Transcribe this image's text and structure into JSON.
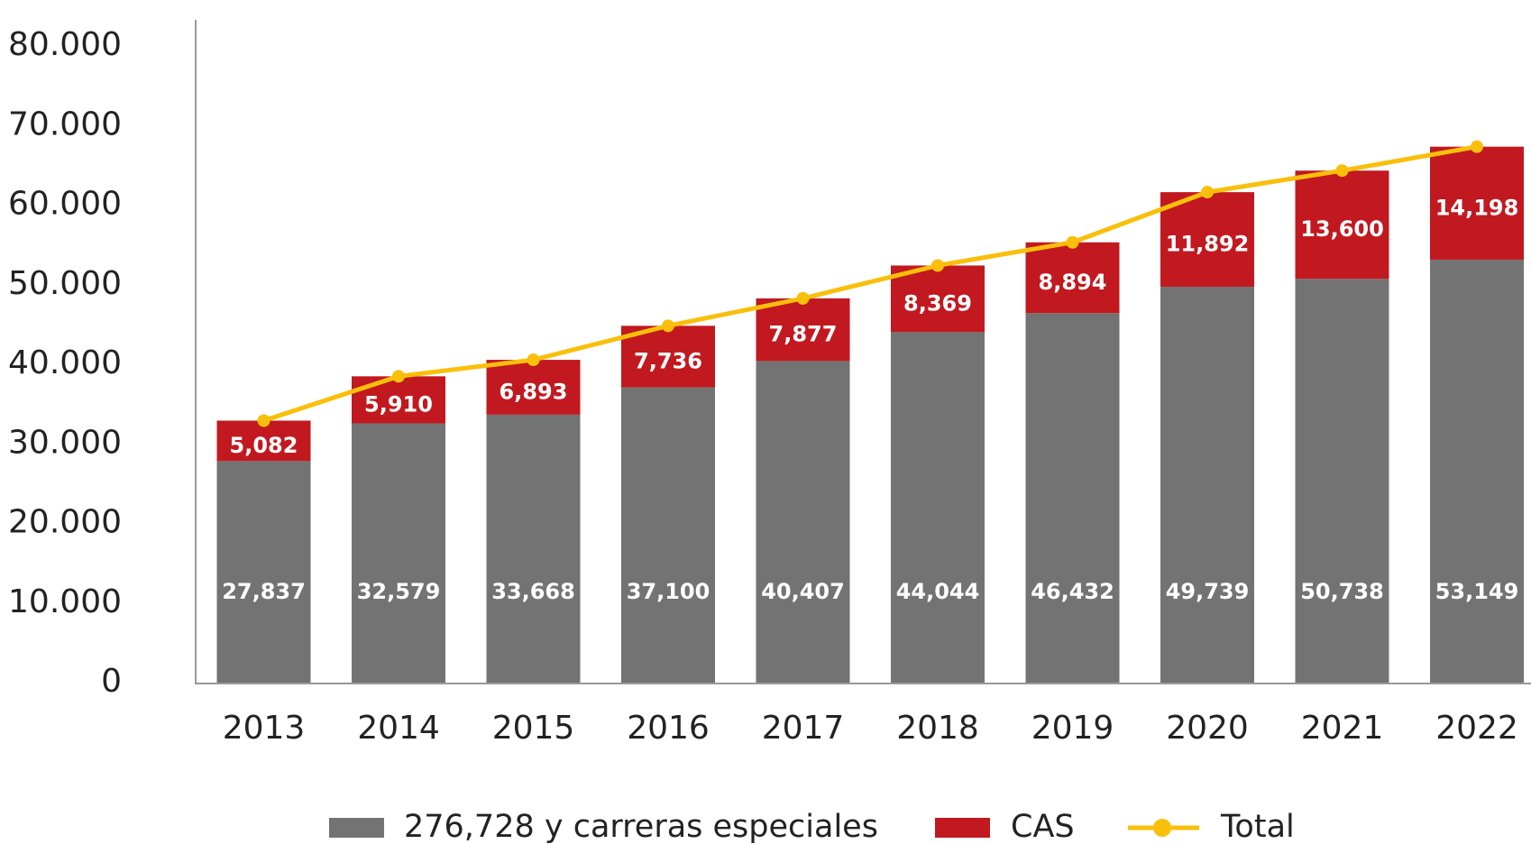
{
  "chart_data": {
    "type": "stacked_bar_line",
    "categories": [
      "2013",
      "2014",
      "2015",
      "2016",
      "2017",
      "2018",
      "2019",
      "2020",
      "2021",
      "2022"
    ],
    "series": [
      {
        "name": "276,728 y carreras especiales",
        "color": "#737373",
        "values": [
          27837,
          32579,
          33668,
          37100,
          40407,
          44044,
          46432,
          49739,
          50738,
          53149
        ]
      },
      {
        "name": "CAS",
        "color": "#c1191f",
        "values": [
          5082,
          5910,
          6893,
          7736,
          7877,
          8369,
          8894,
          11892,
          13600,
          14198
        ]
      },
      {
        "name": "Total",
        "color": "#f9bf0b",
        "type": "line",
        "values": [
          32919,
          38489,
          40561,
          44836,
          48284,
          52413,
          55326,
          61631,
          64338,
          67347
        ]
      }
    ],
    "value_labels": [
      [
        "27,837",
        "32,579",
        "33,668",
        "37,100",
        "40,407",
        "44,044",
        "46,432",
        "49,739",
        "50,738",
        "53,149"
      ],
      [
        "5,082",
        "5,910",
        "6,893",
        "7,736",
        "7,877",
        "8,369",
        "8,894",
        "11,892",
        "13,600",
        "14,198"
      ]
    ],
    "ylim": [
      0,
      80000
    ],
    "yticks": [
      0,
      {
        "value": 10000,
        "label": "10.000"
      },
      {
        "value": 20000,
        "label": "20.000"
      },
      {
        "value": 30000,
        "label": "30.000"
      },
      {
        "value": 40000,
        "label": "40.000"
      },
      {
        "value": 50000,
        "label": "50.000"
      },
      {
        "value": 60000,
        "label": "60.000"
      },
      {
        "value": 70000,
        "label": "70.000"
      },
      {
        "value": 80000,
        "label": "80.000"
      }
    ],
    "legend": "bottom"
  }
}
